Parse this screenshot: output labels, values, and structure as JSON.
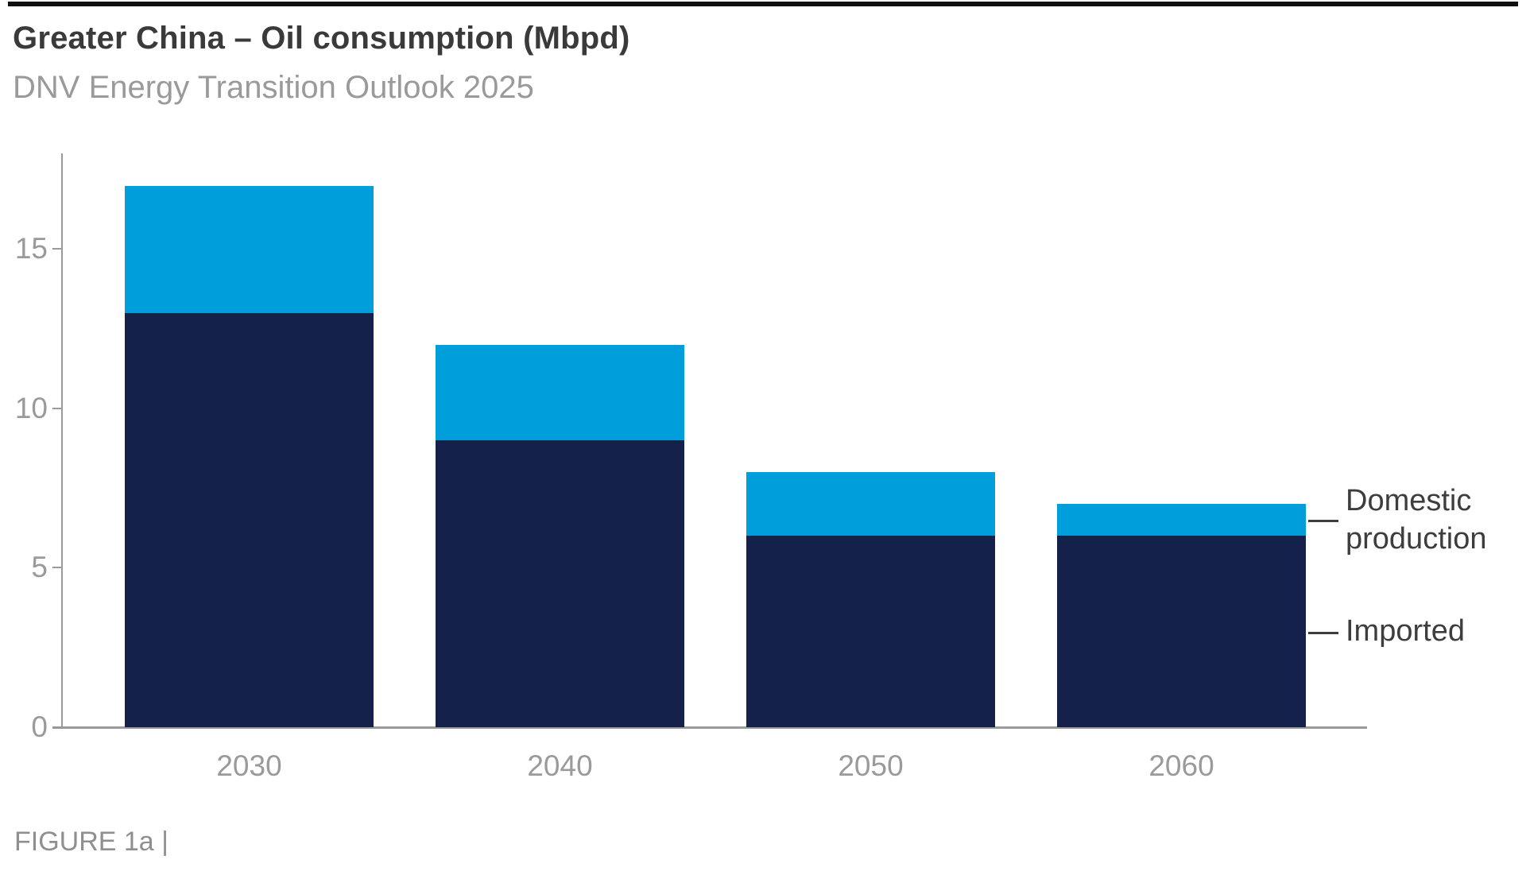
{
  "header": {
    "title": "Greater China – Oil consumption (Mbpd)",
    "subtitle": "DNV Energy Transition Outlook 2025"
  },
  "chart_data": {
    "type": "bar",
    "stacked": true,
    "title": "Greater China – Oil consumption (Mbpd)",
    "subtitle": "DNV Energy Transition Outlook 2025",
    "unit": "Mbpd",
    "categories": [
      "2030",
      "2040",
      "2050",
      "2060"
    ],
    "series": [
      {
        "name": "Imported",
        "key": "imported",
        "color": "#14214B",
        "values": [
          13,
          9,
          6,
          6
        ]
      },
      {
        "name": "Domestic production",
        "key": "domestic-production",
        "color": "#009FDB",
        "values": [
          4,
          3,
          2,
          1
        ]
      }
    ],
    "totals": [
      17,
      12,
      8,
      7
    ],
    "ylim": [
      0,
      18
    ],
    "yticks": [
      0,
      5,
      10,
      15
    ],
    "grid": false,
    "legend_position": "right",
    "legend": [
      {
        "label": "Domestic production"
      },
      {
        "label": "Imported"
      }
    ]
  },
  "footer": {
    "figure_label": "FIGURE 1a |"
  },
  "colors": {
    "imported": "#14214B",
    "domestic_production": "#009FDB",
    "axis": "#9a9a9a",
    "muted_text": "#9a9a9a",
    "dark_text": "#3a3a3a",
    "legend_text": "#3d3d3d",
    "top_rule": "#101010"
  }
}
